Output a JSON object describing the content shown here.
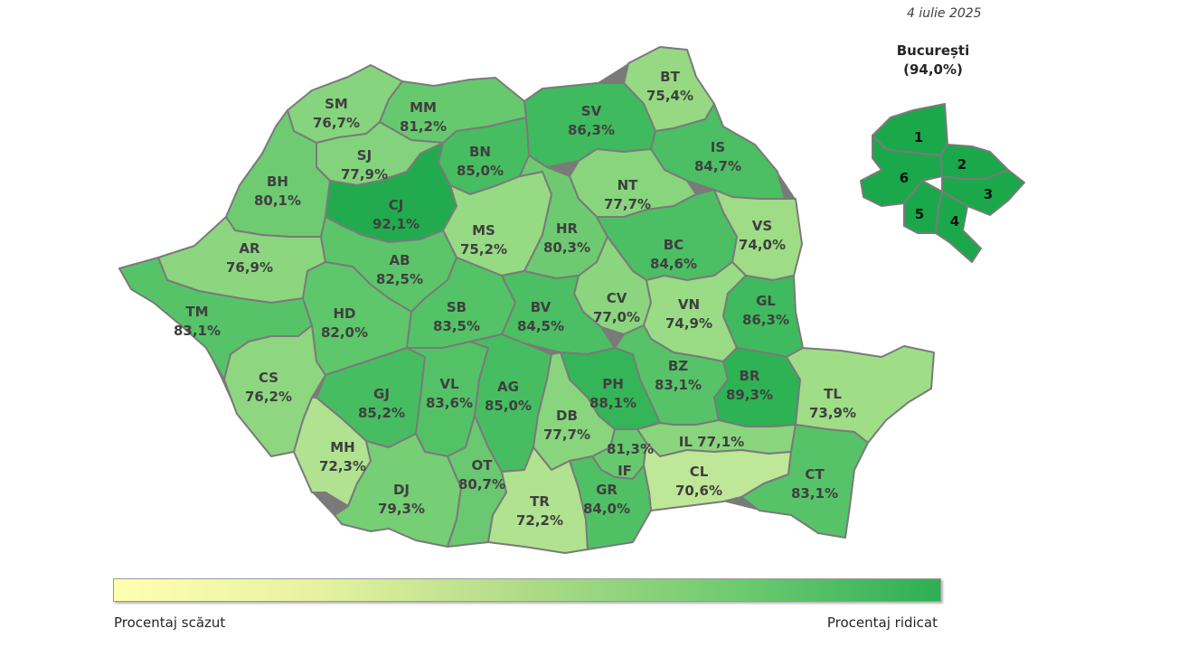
{
  "date": "4 iulie 2025",
  "bucharest": {
    "title": "București",
    "value": "(94,0%)",
    "sectors": [
      "1",
      "2",
      "3",
      "4",
      "5",
      "6"
    ],
    "color": "#1aa84a"
  },
  "legend": {
    "low_label": "Procentaj scăzut",
    "high_label": "Procentaj ridicat",
    "color_low": "#feffb0",
    "color_high": "#2daf55"
  },
  "counties": [
    {
      "code": "SM",
      "value": "76,7%",
      "color": "#86d47e"
    },
    {
      "code": "MM",
      "value": "81,2%",
      "color": "#66c96e"
    },
    {
      "code": "BT",
      "value": "75,4%",
      "color": "#96d982"
    },
    {
      "code": "SV",
      "value": "86,3%",
      "color": "#3fba5e"
    },
    {
      "code": "BN",
      "value": "85,0%",
      "color": "#47bd61"
    },
    {
      "code": "SJ",
      "value": "77,9%",
      "color": "#82d37c"
    },
    {
      "code": "IS",
      "value": "84,7%",
      "color": "#4cbe63"
    },
    {
      "code": "BH",
      "value": "80,1%",
      "color": "#6ecb72"
    },
    {
      "code": "CJ",
      "value": "92,1%",
      "color": "#22aa4f"
    },
    {
      "code": "NT",
      "value": "77,7%",
      "color": "#88d57e"
    },
    {
      "code": "MS",
      "value": "75,2%",
      "color": "#97da84"
    },
    {
      "code": "HR",
      "value": "80,3%",
      "color": "#6dca71"
    },
    {
      "code": "VS",
      "value": "74,0%",
      "color": "#9edc86"
    },
    {
      "code": "AR",
      "value": "76,9%",
      "color": "#8cd67f"
    },
    {
      "code": "AB",
      "value": "82,5%",
      "color": "#5cc56a"
    },
    {
      "code": "BC",
      "value": "84,6%",
      "color": "#4cbe63"
    },
    {
      "code": "CV",
      "value": "77,0%",
      "color": "#8ad57e"
    },
    {
      "code": "TM",
      "value": "83,1%",
      "color": "#56c368"
    },
    {
      "code": "HD",
      "value": "82,0%",
      "color": "#5ec66b"
    },
    {
      "code": "SB",
      "value": "83,5%",
      "color": "#54c267"
    },
    {
      "code": "BV",
      "value": "84,5%",
      "color": "#4cbe63"
    },
    {
      "code": "VN",
      "value": "74,9%",
      "color": "#9adb85"
    },
    {
      "code": "GL",
      "value": "86,3%",
      "color": "#3fba5e"
    },
    {
      "code": "CS",
      "value": "76,2%",
      "color": "#8ed680"
    },
    {
      "code": "GJ",
      "value": "85,2%",
      "color": "#47bd61"
    },
    {
      "code": "VL",
      "value": "83,6%",
      "color": "#53c267"
    },
    {
      "code": "AG",
      "value": "85,0%",
      "color": "#47bd61"
    },
    {
      "code": "PH",
      "value": "88,1%",
      "color": "#34b558"
    },
    {
      "code": "BZ",
      "value": "83,1%",
      "color": "#56c368"
    },
    {
      "code": "BR",
      "value": "89,3%",
      "color": "#2db254"
    },
    {
      "code": "TL",
      "value": "73,9%",
      "color": "#a0dd87"
    },
    {
      "code": "DB",
      "value": "77,7%",
      "color": "#88d57e"
    },
    {
      "code": "MH",
      "value": "72,3%",
      "color": "#b0e28f"
    },
    {
      "code": "IF",
      "value": "81,3%",
      "color": "#66c96e"
    },
    {
      "code": "IL",
      "value": "77,1%",
      "color": "#8ad57e"
    },
    {
      "code": "DJ",
      "value": "79,3%",
      "color": "#76ce75"
    },
    {
      "code": "OT",
      "value": "80,7%",
      "color": "#69c870"
    },
    {
      "code": "CL",
      "value": "70,6%",
      "color": "#bfe798"
    },
    {
      "code": "TR",
      "value": "72,2%",
      "color": "#b0e28f"
    },
    {
      "code": "GR",
      "value": "84,0%",
      "color": "#50c065"
    },
    {
      "code": "CT",
      "value": "83,1%",
      "color": "#56c368"
    }
  ]
}
